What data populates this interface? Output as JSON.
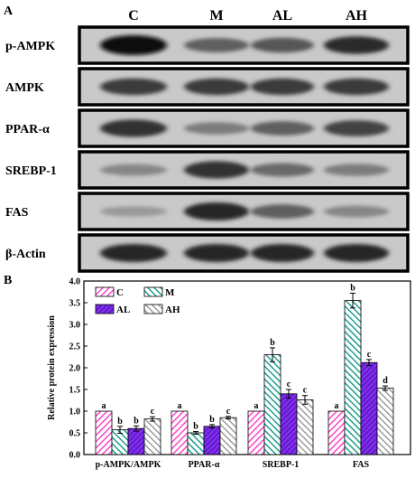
{
  "panel_a": {
    "letter": "A",
    "columns": [
      "C",
      "M",
      "AL",
      "AH"
    ],
    "rows": [
      {
        "label": "p-AMPK",
        "band_intensity": [
          1.0,
          0.55,
          0.6,
          0.82
        ]
      },
      {
        "label": "AMPK",
        "band_intensity": [
          0.75,
          0.75,
          0.75,
          0.75
        ]
      },
      {
        "label": "PPAR-α",
        "band_intensity": [
          0.8,
          0.4,
          0.55,
          0.7
        ]
      },
      {
        "label": "SREBP-1",
        "band_intensity": [
          0.35,
          0.8,
          0.5,
          0.4
        ]
      },
      {
        "label": "FAS",
        "band_intensity": [
          0.25,
          0.85,
          0.55,
          0.35
        ]
      },
      {
        "label": "β-Actin",
        "band_intensity": [
          0.85,
          0.85,
          0.85,
          0.85
        ]
      }
    ]
  },
  "chart_data": {
    "panel_letter": "B",
    "type": "bar",
    "categories": [
      "p-AMPK/AMPK",
      "PPAR-α",
      "SREBP-1",
      "FAS"
    ],
    "ylabel": "Relative protein expression",
    "xlabel": "",
    "ylim": [
      0,
      4.0
    ],
    "yticks": [
      "0.0",
      "0.5",
      "1.0",
      "1.5",
      "2.0",
      "2.5",
      "3.0",
      "3.5",
      "4.0"
    ],
    "legend_position": "top-left",
    "series": [
      {
        "name": "C",
        "color": "#ff66cc",
        "pattern": "diagonal-right",
        "values": [
          1.0,
          1.0,
          1.0,
          1.0
        ],
        "errors": [
          0.0,
          0.0,
          0.0,
          0.0
        ],
        "letters": [
          "a",
          "a",
          "a",
          "a"
        ]
      },
      {
        "name": "M",
        "color": "#2aa198",
        "pattern": "diagonal-left",
        "values": [
          0.57,
          0.5,
          2.3,
          3.55
        ],
        "errors": [
          0.08,
          0.03,
          0.16,
          0.17
        ],
        "letters": [
          "b",
          "b",
          "b",
          "b"
        ]
      },
      {
        "name": "AL",
        "color": "#8a2be2",
        "pattern": "diagonal-right-dense",
        "values": [
          0.6,
          0.65,
          1.4,
          2.12
        ],
        "errors": [
          0.06,
          0.04,
          0.1,
          0.07
        ],
        "letters": [
          "b",
          "b",
          "c",
          "c"
        ]
      },
      {
        "name": "AH",
        "color": "#9a9a9a",
        "pattern": "diagonal-left-light",
        "values": [
          0.82,
          0.85,
          1.26,
          1.53
        ],
        "errors": [
          0.05,
          0.03,
          0.1,
          0.05
        ],
        "letters": [
          "c",
          "c",
          "c",
          "d"
        ]
      }
    ]
  }
}
